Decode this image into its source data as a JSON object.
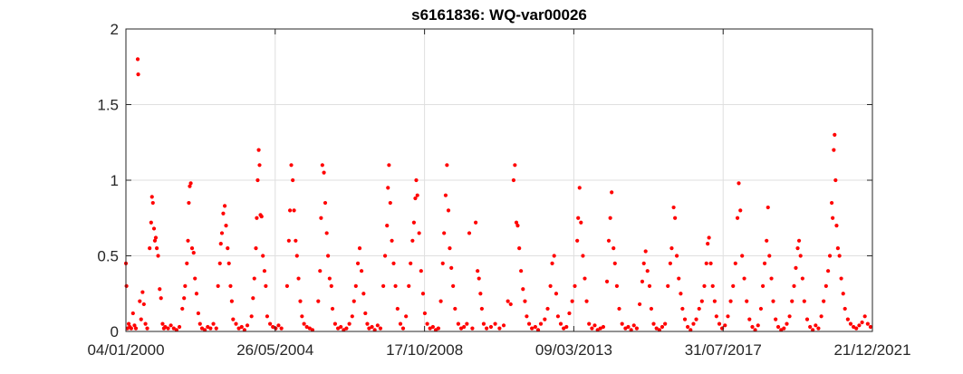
{
  "chart_data": {
    "type": "scatter",
    "title": "s6161836: WQ-var00026",
    "xlabel": "",
    "ylabel": "",
    "x_range": [
      "2000-01-04",
      "2021-12-21"
    ],
    "ylim": [
      0,
      2
    ],
    "x_ticks": [
      "04/01/2000",
      "26/05/2004",
      "17/10/2008",
      "09/03/2013",
      "31/07/2017",
      "21/12/2021"
    ],
    "y_ticks": [
      "0",
      "0.5",
      "1",
      "1.5",
      "2"
    ],
    "grid": true,
    "marker_color": "#ff0000",
    "points": [
      [
        "2000-01-04",
        0.45
      ],
      [
        "2000-01-10",
        0.3
      ],
      [
        "2000-01-20",
        0.02
      ],
      [
        "2000-02-03",
        0.05
      ],
      [
        "2000-02-15",
        0.03
      ],
      [
        "2000-03-01",
        0.02
      ],
      [
        "2000-03-20",
        0.12
      ],
      [
        "2000-04-05",
        0.04
      ],
      [
        "2000-04-20",
        0.02
      ],
      [
        "2000-05-10",
        1.8
      ],
      [
        "2000-05-15",
        1.7
      ],
      [
        "2000-06-01",
        0.2
      ],
      [
        "2000-06-15",
        0.08
      ],
      [
        "2000-07-01",
        0.26
      ],
      [
        "2000-07-15",
        0.18
      ],
      [
        "2000-08-01",
        0.05
      ],
      [
        "2000-08-20",
        0.02
      ],
      [
        "2000-09-15",
        0.55
      ],
      [
        "2000-10-01",
        0.72
      ],
      [
        "2000-10-10",
        0.89
      ],
      [
        "2000-10-20",
        0.85
      ],
      [
        "2000-11-01",
        0.68
      ],
      [
        "2000-11-10",
        0.6
      ],
      [
        "2000-11-20",
        0.62
      ],
      [
        "2000-12-01",
        0.55
      ],
      [
        "2000-12-15",
        0.5
      ],
      [
        "2001-01-01",
        0.28
      ],
      [
        "2001-01-15",
        0.22
      ],
      [
        "2001-02-01",
        0.05
      ],
      [
        "2001-02-15",
        0.02
      ],
      [
        "2001-03-01",
        0.03
      ],
      [
        "2001-04-01",
        0.02
      ],
      [
        "2001-05-01",
        0.04
      ],
      [
        "2001-06-01",
        0.02
      ],
      [
        "2001-07-01",
        0.01
      ],
      [
        "2001-08-01",
        0.03
      ],
      [
        "2001-09-01",
        0.15
      ],
      [
        "2001-09-20",
        0.22
      ],
      [
        "2001-10-01",
        0.3
      ],
      [
        "2001-10-20",
        0.45
      ],
      [
        "2001-11-01",
        0.6
      ],
      [
        "2001-11-10",
        0.85
      ],
      [
        "2001-11-20",
        0.96
      ],
      [
        "2001-12-01",
        0.98
      ],
      [
        "2001-12-15",
        0.55
      ],
      [
        "2002-01-01",
        0.52
      ],
      [
        "2002-01-15",
        0.35
      ],
      [
        "2002-02-01",
        0.25
      ],
      [
        "2002-02-20",
        0.12
      ],
      [
        "2002-03-10",
        0.05
      ],
      [
        "2002-04-01",
        0.02
      ],
      [
        "2002-05-01",
        0.01
      ],
      [
        "2002-06-01",
        0.03
      ],
      [
        "2002-07-01",
        0.02
      ],
      [
        "2002-08-01",
        0.05
      ],
      [
        "2002-09-01",
        0.02
      ],
      [
        "2002-09-20",
        0.3
      ],
      [
        "2002-10-10",
        0.45
      ],
      [
        "2002-10-20",
        0.58
      ],
      [
        "2002-11-01",
        0.65
      ],
      [
        "2002-11-15",
        0.78
      ],
      [
        "2002-12-01",
        0.83
      ],
      [
        "2002-12-15",
        0.7
      ],
      [
        "2003-01-01",
        0.55
      ],
      [
        "2003-01-15",
        0.45
      ],
      [
        "2003-02-01",
        0.3
      ],
      [
        "2003-02-15",
        0.2
      ],
      [
        "2003-03-01",
        0.08
      ],
      [
        "2003-04-01",
        0.05
      ],
      [
        "2003-05-01",
        0.02
      ],
      [
        "2003-06-01",
        0.03
      ],
      [
        "2003-07-01",
        0.01
      ],
      [
        "2003-08-01",
        0.04
      ],
      [
        "2003-09-15",
        0.1
      ],
      [
        "2003-10-01",
        0.22
      ],
      [
        "2003-10-15",
        0.35
      ],
      [
        "2003-11-01",
        0.55
      ],
      [
        "2003-11-10",
        0.75
      ],
      [
        "2003-11-20",
        1.0
      ],
      [
        "2003-12-01",
        1.2
      ],
      [
        "2003-12-10",
        1.1
      ],
      [
        "2003-12-20",
        0.77
      ],
      [
        "2004-01-01",
        0.76
      ],
      [
        "2004-01-15",
        0.5
      ],
      [
        "2004-02-01",
        0.4
      ],
      [
        "2004-02-15",
        0.3
      ],
      [
        "2004-03-01",
        0.1
      ],
      [
        "2004-04-01",
        0.05
      ],
      [
        "2004-05-01",
        0.03
      ],
      [
        "2004-06-01",
        0.02
      ],
      [
        "2004-07-01",
        0.04
      ],
      [
        "2004-08-01",
        0.02
      ],
      [
        "2004-10-01",
        0.3
      ],
      [
        "2004-10-20",
        0.6
      ],
      [
        "2004-11-01",
        0.8
      ],
      [
        "2004-11-15",
        1.1
      ],
      [
        "2004-12-01",
        1.0
      ],
      [
        "2004-12-15",
        0.8
      ],
      [
        "2005-01-01",
        0.6
      ],
      [
        "2005-01-15",
        0.5
      ],
      [
        "2005-02-01",
        0.35
      ],
      [
        "2005-02-20",
        0.2
      ],
      [
        "2005-03-10",
        0.1
      ],
      [
        "2005-04-01",
        0.05
      ],
      [
        "2005-05-01",
        0.03
      ],
      [
        "2005-06-01",
        0.02
      ],
      [
        "2005-07-01",
        0.01
      ],
      [
        "2005-09-01",
        0.2
      ],
      [
        "2005-09-20",
        0.4
      ],
      [
        "2005-10-01",
        0.75
      ],
      [
        "2005-10-15",
        1.1
      ],
      [
        "2005-11-01",
        1.05
      ],
      [
        "2005-11-15",
        0.85
      ],
      [
        "2005-12-01",
        0.65
      ],
      [
        "2005-12-15",
        0.5
      ],
      [
        "2006-01-01",
        0.35
      ],
      [
        "2006-01-20",
        0.3
      ],
      [
        "2006-02-01",
        0.15
      ],
      [
        "2006-03-01",
        0.05
      ],
      [
        "2006-04-01",
        0.02
      ],
      [
        "2006-05-01",
        0.03
      ],
      [
        "2006-06-01",
        0.01
      ],
      [
        "2006-07-01",
        0.02
      ],
      [
        "2006-08-01",
        0.05
      ],
      [
        "2006-09-01",
        0.1
      ],
      [
        "2006-09-20",
        0.2
      ],
      [
        "2006-10-10",
        0.3
      ],
      [
        "2006-11-01",
        0.45
      ],
      [
        "2006-11-20",
        0.55
      ],
      [
        "2006-12-10",
        0.4
      ],
      [
        "2007-01-01",
        0.25
      ],
      [
        "2007-01-20",
        0.12
      ],
      [
        "2007-02-10",
        0.05
      ],
      [
        "2007-03-01",
        0.02
      ],
      [
        "2007-04-01",
        0.03
      ],
      [
        "2007-05-01",
        0.01
      ],
      [
        "2007-06-01",
        0.04
      ],
      [
        "2007-07-01",
        0.02
      ],
      [
        "2007-08-01",
        0.3
      ],
      [
        "2007-08-20",
        0.5
      ],
      [
        "2007-09-10",
        0.7
      ],
      [
        "2007-09-20",
        0.95
      ],
      [
        "2007-10-01",
        1.1
      ],
      [
        "2007-10-15",
        0.85
      ],
      [
        "2007-11-01",
        0.6
      ],
      [
        "2007-11-20",
        0.45
      ],
      [
        "2007-12-10",
        0.3
      ],
      [
        "2008-01-01",
        0.15
      ],
      [
        "2008-02-01",
        0.05
      ],
      [
        "2008-03-01",
        0.02
      ],
      [
        "2008-04-01",
        0.1
      ],
      [
        "2008-05-01",
        0.3
      ],
      [
        "2008-05-20",
        0.45
      ],
      [
        "2008-06-10",
        0.6
      ],
      [
        "2008-06-25",
        0.72
      ],
      [
        "2008-07-10",
        0.88
      ],
      [
        "2008-07-20",
        1.0
      ],
      [
        "2008-08-01",
        0.9
      ],
      [
        "2008-08-20",
        0.65
      ],
      [
        "2008-09-10",
        0.4
      ],
      [
        "2008-10-01",
        0.25
      ],
      [
        "2008-10-20",
        0.12
      ],
      [
        "2008-11-15",
        0.05
      ],
      [
        "2008-12-15",
        0.02
      ],
      [
        "2009-01-15",
        0.03
      ],
      [
        "2009-02-15",
        0.01
      ],
      [
        "2009-03-15",
        0.02
      ],
      [
        "2009-04-10",
        0.2
      ],
      [
        "2009-05-01",
        0.45
      ],
      [
        "2009-05-15",
        0.65
      ],
      [
        "2009-06-01",
        0.9
      ],
      [
        "2009-06-15",
        1.1
      ],
      [
        "2009-07-01",
        0.8
      ],
      [
        "2009-07-15",
        0.55
      ],
      [
        "2009-08-01",
        0.42
      ],
      [
        "2009-08-20",
        0.3
      ],
      [
        "2009-09-10",
        0.15
      ],
      [
        "2009-10-15",
        0.05
      ],
      [
        "2009-11-15",
        0.02
      ],
      [
        "2009-12-15",
        0.03
      ],
      [
        "2010-01-15",
        0.05
      ],
      [
        "2010-02-10",
        0.65
      ],
      [
        "2010-03-15",
        0.02
      ],
      [
        "2010-04-20",
        0.72
      ],
      [
        "2010-05-10",
        0.4
      ],
      [
        "2010-05-25",
        0.35
      ],
      [
        "2010-06-10",
        0.25
      ],
      [
        "2010-06-25",
        0.15
      ],
      [
        "2010-07-15",
        0.05
      ],
      [
        "2010-08-15",
        0.02
      ],
      [
        "2010-10-01",
        0.03
      ],
      [
        "2010-11-15",
        0.05
      ],
      [
        "2011-01-01",
        0.02
      ],
      [
        "2011-02-15",
        0.04
      ],
      [
        "2011-04-01",
        0.2
      ],
      [
        "2011-05-01",
        0.18
      ],
      [
        "2011-06-01",
        1.0
      ],
      [
        "2011-06-15",
        1.1
      ],
      [
        "2011-07-01",
        0.72
      ],
      [
        "2011-07-15",
        0.7
      ],
      [
        "2011-08-01",
        0.55
      ],
      [
        "2011-08-20",
        0.4
      ],
      [
        "2011-09-10",
        0.28
      ],
      [
        "2011-10-01",
        0.2
      ],
      [
        "2011-10-20",
        0.1
      ],
      [
        "2011-11-15",
        0.05
      ],
      [
        "2011-12-15",
        0.02
      ],
      [
        "2012-01-20",
        0.03
      ],
      [
        "2012-02-20",
        0.01
      ],
      [
        "2012-03-20",
        0.05
      ],
      [
        "2012-05-01",
        0.08
      ],
      [
        "2012-06-01",
        0.15
      ],
      [
        "2012-07-01",
        0.3
      ],
      [
        "2012-07-20",
        0.45
      ],
      [
        "2012-08-10",
        0.5
      ],
      [
        "2012-09-01",
        0.25
      ],
      [
        "2012-09-20",
        0.1
      ],
      [
        "2012-10-20",
        0.05
      ],
      [
        "2012-11-20",
        0.02
      ],
      [
        "2012-12-20",
        0.03
      ],
      [
        "2013-01-20",
        0.12
      ],
      [
        "2013-02-20",
        0.2
      ],
      [
        "2013-03-20",
        0.3
      ],
      [
        "2013-04-15",
        0.6
      ],
      [
        "2013-04-25",
        0.75
      ],
      [
        "2013-05-10",
        0.95
      ],
      [
        "2013-05-25",
        0.72
      ],
      [
        "2013-06-15",
        0.5
      ],
      [
        "2013-07-05",
        0.35
      ],
      [
        "2013-07-25",
        0.2
      ],
      [
        "2013-08-20",
        0.05
      ],
      [
        "2013-09-20",
        0.02
      ],
      [
        "2013-10-20",
        0.04
      ],
      [
        "2013-11-20",
        0.01
      ],
      [
        "2013-12-20",
        0.02
      ],
      [
        "2014-01-20",
        0.03
      ],
      [
        "2014-03-01",
        0.33
      ],
      [
        "2014-03-20",
        0.6
      ],
      [
        "2014-04-05",
        0.75
      ],
      [
        "2014-04-20",
        0.92
      ],
      [
        "2014-05-10",
        0.55
      ],
      [
        "2014-05-25",
        0.45
      ],
      [
        "2014-06-15",
        0.3
      ],
      [
        "2014-07-10",
        0.15
      ],
      [
        "2014-08-10",
        0.05
      ],
      [
        "2014-09-15",
        0.02
      ],
      [
        "2014-10-15",
        0.03
      ],
      [
        "2014-11-15",
        0.01
      ],
      [
        "2014-12-15",
        0.04
      ],
      [
        "2015-01-15",
        0.02
      ],
      [
        "2015-02-15",
        0.18
      ],
      [
        "2015-03-15",
        0.33
      ],
      [
        "2015-04-01",
        0.45
      ],
      [
        "2015-04-20",
        0.53
      ],
      [
        "2015-05-10",
        0.4
      ],
      [
        "2015-06-01",
        0.3
      ],
      [
        "2015-06-20",
        0.15
      ],
      [
        "2015-07-15",
        0.05
      ],
      [
        "2015-08-15",
        0.02
      ],
      [
        "2015-09-15",
        0.01
      ],
      [
        "2015-10-15",
        0.03
      ],
      [
        "2015-11-15",
        0.05
      ],
      [
        "2015-12-15",
        0.3
      ],
      [
        "2016-01-10",
        0.45
      ],
      [
        "2016-01-25",
        0.55
      ],
      [
        "2016-02-15",
        0.82
      ],
      [
        "2016-03-01",
        0.75
      ],
      [
        "2016-03-20",
        0.5
      ],
      [
        "2016-04-10",
        0.35
      ],
      [
        "2016-05-01",
        0.25
      ],
      [
        "2016-05-20",
        0.15
      ],
      [
        "2016-06-15",
        0.08
      ],
      [
        "2016-07-15",
        0.03
      ],
      [
        "2016-08-15",
        0.01
      ],
      [
        "2016-09-15",
        0.05
      ],
      [
        "2016-10-15",
        0.08
      ],
      [
        "2016-11-15",
        0.15
      ],
      [
        "2016-12-15",
        0.2
      ],
      [
        "2017-01-10",
        0.3
      ],
      [
        "2017-02-01",
        0.45
      ],
      [
        "2017-02-15",
        0.58
      ],
      [
        "2017-03-01",
        0.62
      ],
      [
        "2017-03-20",
        0.45
      ],
      [
        "2017-04-10",
        0.3
      ],
      [
        "2017-05-01",
        0.2
      ],
      [
        "2017-05-20",
        0.1
      ],
      [
        "2017-06-20",
        0.05
      ],
      [
        "2017-07-20",
        0.02
      ],
      [
        "2017-08-20",
        0.04
      ],
      [
        "2017-09-20",
        0.1
      ],
      [
        "2017-10-20",
        0.2
      ],
      [
        "2017-11-15",
        0.3
      ],
      [
        "2017-12-10",
        0.45
      ],
      [
        "2018-01-01",
        0.75
      ],
      [
        "2018-01-15",
        0.98
      ],
      [
        "2018-02-01",
        0.8
      ],
      [
        "2018-02-20",
        0.5
      ],
      [
        "2018-03-15",
        0.35
      ],
      [
        "2018-04-10",
        0.2
      ],
      [
        "2018-05-10",
        0.08
      ],
      [
        "2018-06-10",
        0.03
      ],
      [
        "2018-07-10",
        0.01
      ],
      [
        "2018-08-10",
        0.04
      ],
      [
        "2018-09-10",
        0.15
      ],
      [
        "2018-10-01",
        0.3
      ],
      [
        "2018-10-20",
        0.45
      ],
      [
        "2018-11-10",
        0.6
      ],
      [
        "2018-11-25",
        0.82
      ],
      [
        "2018-12-10",
        0.5
      ],
      [
        "2019-01-01",
        0.35
      ],
      [
        "2019-01-20",
        0.2
      ],
      [
        "2019-02-15",
        0.08
      ],
      [
        "2019-03-15",
        0.03
      ],
      [
        "2019-04-15",
        0.01
      ],
      [
        "2019-05-15",
        0.02
      ],
      [
        "2019-06-15",
        0.05
      ],
      [
        "2019-07-15",
        0.1
      ],
      [
        "2019-08-10",
        0.2
      ],
      [
        "2019-09-01",
        0.3
      ],
      [
        "2019-09-20",
        0.42
      ],
      [
        "2019-10-10",
        0.55
      ],
      [
        "2019-10-25",
        0.6
      ],
      [
        "2019-11-10",
        0.5
      ],
      [
        "2019-12-01",
        0.35
      ],
      [
        "2019-12-20",
        0.2
      ],
      [
        "2020-01-20",
        0.08
      ],
      [
        "2020-02-20",
        0.03
      ],
      [
        "2020-03-20",
        0.01
      ],
      [
        "2020-04-20",
        0.04
      ],
      [
        "2020-05-20",
        0.02
      ],
      [
        "2020-06-20",
        0.1
      ],
      [
        "2020-07-15",
        0.2
      ],
      [
        "2020-08-10",
        0.3
      ],
      [
        "2020-09-01",
        0.4
      ],
      [
        "2020-09-20",
        0.5
      ],
      [
        "2020-10-10",
        0.85
      ],
      [
        "2020-10-20",
        0.75
      ],
      [
        "2020-11-01",
        1.2
      ],
      [
        "2020-11-10",
        1.3
      ],
      [
        "2020-11-20",
        1.0
      ],
      [
        "2020-12-01",
        0.7
      ],
      [
        "2020-12-15",
        0.55
      ],
      [
        "2021-01-01",
        0.5
      ],
      [
        "2021-01-20",
        0.35
      ],
      [
        "2021-02-10",
        0.25
      ],
      [
        "2021-03-01",
        0.15
      ],
      [
        "2021-04-01",
        0.08
      ],
      [
        "2021-05-01",
        0.05
      ],
      [
        "2021-06-01",
        0.03
      ],
      [
        "2021-07-01",
        0.02
      ],
      [
        "2021-08-01",
        0.04
      ],
      [
        "2021-09-01",
        0.06
      ],
      [
        "2021-10-01",
        0.1
      ],
      [
        "2021-11-01",
        0.05
      ],
      [
        "2021-12-01",
        0.03
      ]
    ]
  }
}
